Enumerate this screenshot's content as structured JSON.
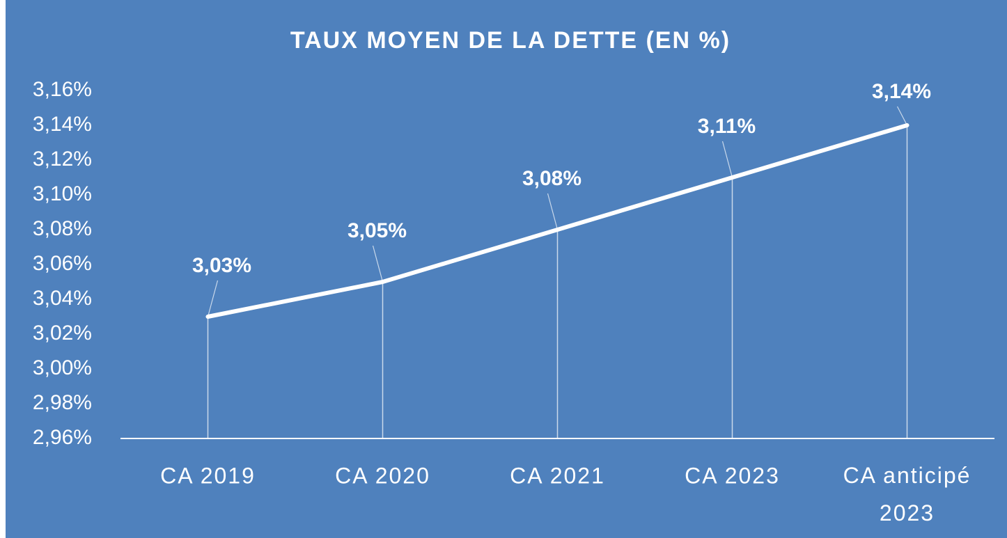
{
  "chart_data": {
    "type": "line",
    "title": "TAUX MOYEN DE LA DETTE (EN %)",
    "categories": [
      "CA 2019",
      "CA 2020",
      "CA 2021",
      "CA 2023",
      "CA anticipé 2023"
    ],
    "values": [
      3.03,
      3.05,
      3.08,
      3.11,
      3.14
    ],
    "value_labels": [
      "3,03%",
      "3,05%",
      "3,08%",
      "3,11%",
      "3,14%"
    ],
    "color": "#ffffff",
    "ylim": [
      2.96,
      3.16
    ],
    "yticks": [
      {
        "value": 2.96,
        "label": "2,96%"
      },
      {
        "value": 2.98,
        "label": "2,98%"
      },
      {
        "value": 3.0,
        "label": "3,00%"
      },
      {
        "value": 3.02,
        "label": "3,02%"
      },
      {
        "value": 3.04,
        "label": "3,04%"
      },
      {
        "value": 3.06,
        "label": "3,06%"
      },
      {
        "value": 3.08,
        "label": "3,08%"
      },
      {
        "value": 3.1,
        "label": "3,10%"
      },
      {
        "value": 3.12,
        "label": "3,12%"
      },
      {
        "value": 3.14,
        "label": "3,14%"
      },
      {
        "value": 3.16,
        "label": "3,16%"
      }
    ],
    "grid": false
  }
}
